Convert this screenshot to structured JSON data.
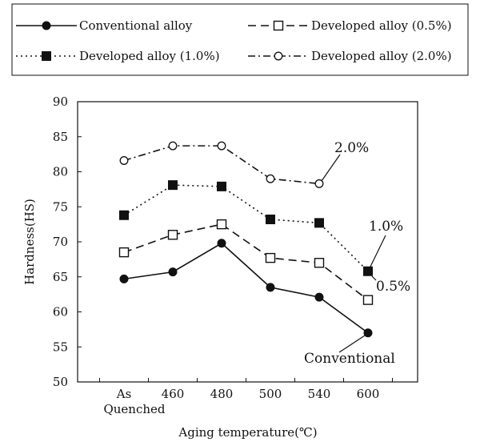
{
  "chart_data": {
    "type": "line",
    "title": "",
    "xlabel": "Aging temperature(℃)",
    "ylabel": "Hardness(HS)",
    "categories": [
      "As\nQuenched",
      "460",
      "480",
      "500",
      "540",
      "600"
    ],
    "ylim": [
      50,
      90
    ],
    "yticks": [
      50,
      55,
      60,
      65,
      70,
      75,
      80,
      85,
      90
    ],
    "grid": false,
    "legend_position": "top",
    "series": [
      {
        "name": "Conventional alloy",
        "marker": "filled-circle",
        "line_style": "solid",
        "annotation": "Conventional",
        "values": [
          64.7,
          65.7,
          69.8,
          63.5,
          62.1,
          57.0
        ]
      },
      {
        "name": "Developed alloy (0.5%)",
        "marker": "open-square",
        "line_style": "dashed",
        "annotation": "0.5%",
        "values": [
          68.5,
          71.0,
          72.5,
          67.7,
          67.0,
          61.7
        ]
      },
      {
        "name": "Developed alloy (1.0%)",
        "marker": "filled-square",
        "line_style": "dotted",
        "annotation": "1.0%",
        "values": [
          73.8,
          78.1,
          77.9,
          73.2,
          72.7,
          65.8
        ]
      },
      {
        "name": "Developed alloy (2.0%)",
        "marker": "open-circle",
        "line_style": "dash-dot",
        "annotation": "2.0%",
        "values": [
          81.6,
          83.7,
          83.7,
          79.0,
          78.3,
          null
        ]
      }
    ],
    "colors": {
      "line": "#111111",
      "marker_fill": "#111111",
      "marker_open_fill": "#ffffff"
    }
  }
}
